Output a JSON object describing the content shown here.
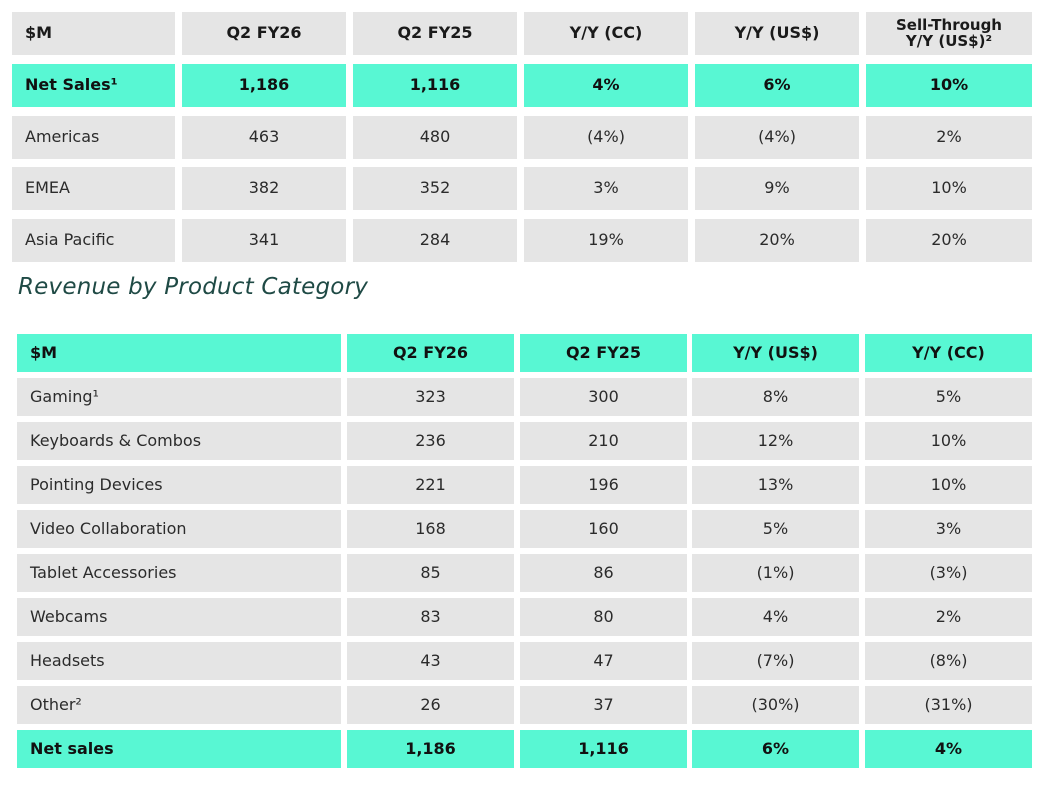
{
  "region_table": {
    "headers": [
      "$M",
      "Q2 FY26",
      "Q2 FY25",
      "Y/Y (CC)",
      "Y/Y (US$)",
      "Sell-Through\nY/Y (US$)²"
    ],
    "rows": [
      {
        "label": "Net Sales¹",
        "values": [
          "1,186",
          "1,116",
          "4%",
          "6%",
          "10%"
        ]
      },
      {
        "label": "Americas",
        "values": [
          "463",
          "480",
          "(4%)",
          "(4%)",
          "2%"
        ]
      },
      {
        "label": "EMEA",
        "values": [
          "382",
          "352",
          "3%",
          "9%",
          "10%"
        ]
      },
      {
        "label": "Asia Pacific",
        "values": [
          "341",
          "284",
          "19%",
          "20%",
          "20%"
        ]
      }
    ]
  },
  "section_title": "Revenue by Product Category",
  "category_table": {
    "headers": [
      "$M",
      "Q2 FY26",
      "Q2 FY25",
      "Y/Y (US$)",
      "Y/Y (CC)"
    ],
    "rows": [
      {
        "label": "Gaming¹",
        "values": [
          "323",
          "300",
          "8%",
          "5%"
        ]
      },
      {
        "label": "Keyboards & Combos",
        "values": [
          "236",
          "210",
          "12%",
          "10%"
        ]
      },
      {
        "label": "Pointing Devices",
        "values": [
          "221",
          "196",
          "13%",
          "10%"
        ]
      },
      {
        "label": "Video Collaboration",
        "values": [
          "168",
          "160",
          "5%",
          "3%"
        ]
      },
      {
        "label": "Tablet Accessories",
        "values": [
          "85",
          "86",
          "(1%)",
          "(3%)"
        ]
      },
      {
        "label": "Webcams",
        "values": [
          "83",
          "80",
          "4%",
          "2%"
        ]
      },
      {
        "label": "Headsets",
        "values": [
          "43",
          "47",
          "(7%)",
          "(8%)"
        ]
      },
      {
        "label": "Other²",
        "values": [
          "26",
          "37",
          "(30%)",
          "(31%)"
        ]
      },
      {
        "label": "Net sales",
        "values": [
          "1,186",
          "1,116",
          "6%",
          "4%"
        ]
      }
    ]
  },
  "colors": {
    "highlight": "#58f7d3",
    "cell_bg": "#e5e5e5",
    "title": "#1f4a45"
  }
}
